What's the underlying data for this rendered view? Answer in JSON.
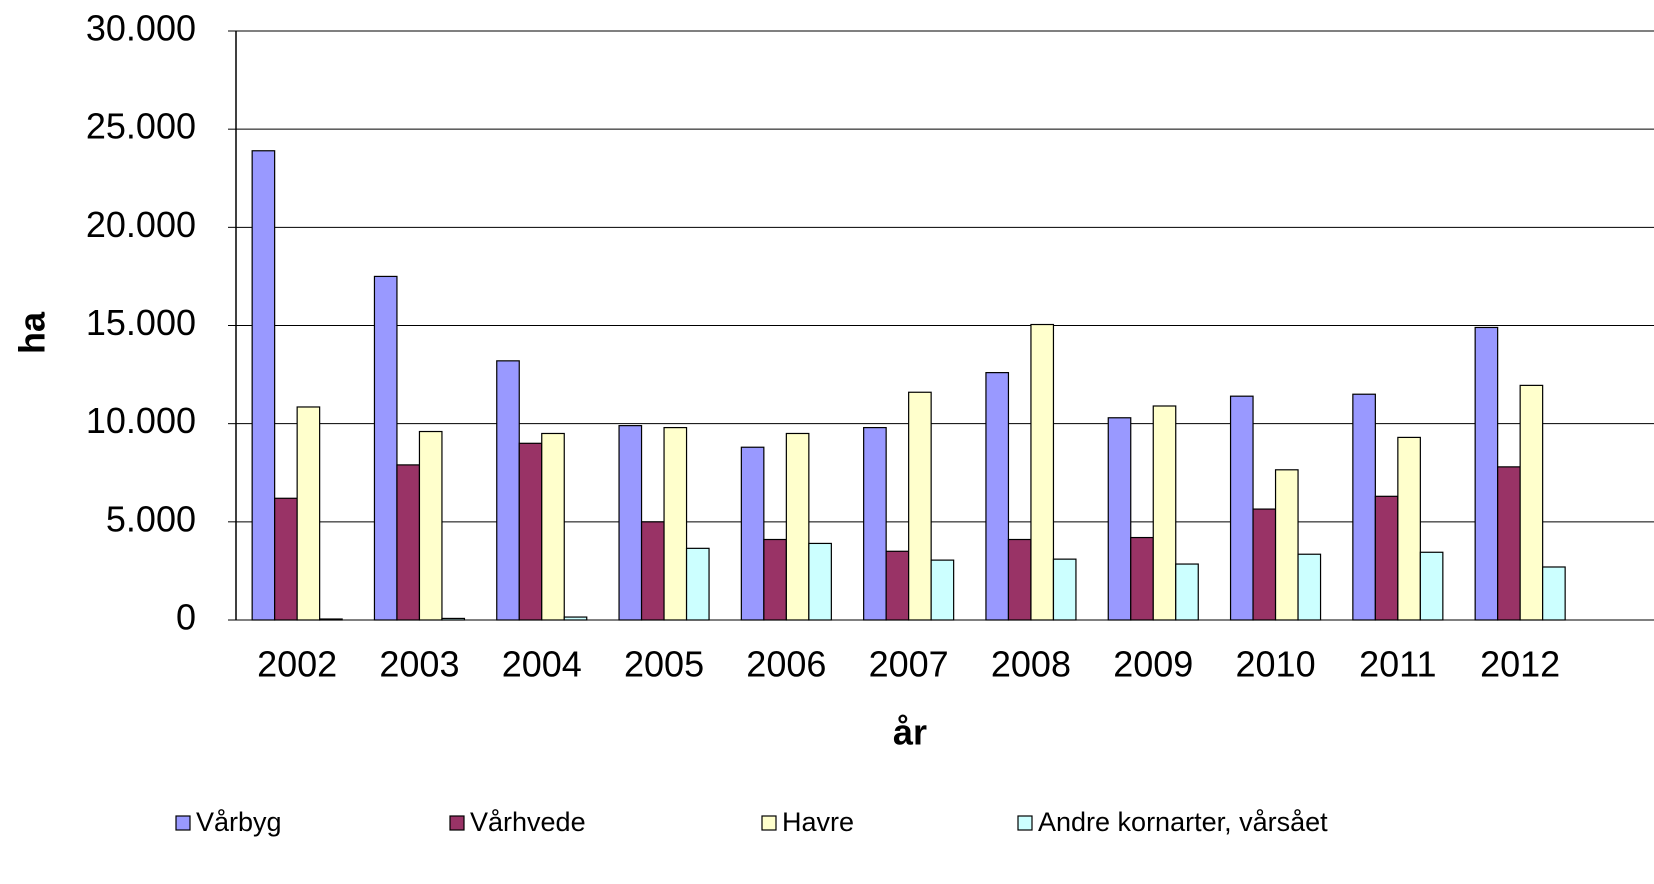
{
  "chart_data": {
    "type": "bar",
    "x_label": "år",
    "y_label": "ha",
    "categories": [
      "2002",
      "2003",
      "2004",
      "2005",
      "2006",
      "2007",
      "2008",
      "2009",
      "2010",
      "2011",
      "2012"
    ],
    "series": [
      {
        "name": "Vårbyg",
        "color": "#9999ff",
        "values": [
          23900,
          17500,
          13200,
          9900,
          8800,
          9800,
          12600,
          10300,
          11400,
          11500,
          14900
        ]
      },
      {
        "name": "Vårhvede",
        "color": "#993366",
        "values": [
          6200,
          7900,
          9000,
          5000,
          4100,
          3500,
          4100,
          4200,
          5650,
          6300,
          7800
        ]
      },
      {
        "name": "Havre",
        "color": "#ffffcc",
        "values": [
          10850,
          9600,
          9500,
          9800,
          9500,
          11600,
          15050,
          10900,
          7650,
          9300,
          11950
        ]
      },
      {
        "name": "Andre kornarter, vårsået",
        "color": "#ccffff",
        "values": [
          50,
          80,
          150,
          3650,
          3900,
          3050,
          3100,
          2850,
          3350,
          3450,
          2700
        ]
      }
    ],
    "ylim": [
      0,
      30000
    ],
    "yticks": [
      0,
      {
        "value": 5000,
        "label": "5.000"
      },
      {
        "value": 10000,
        "label": "10.000"
      },
      {
        "value": 15000,
        "label": "15.000"
      },
      {
        "value": 20000,
        "label": "20.000"
      },
      {
        "value": 25000,
        "label": "25.000"
      },
      {
        "value": 30000,
        "label": "30.000"
      }
    ],
    "grid": true,
    "legend": "bottom"
  }
}
